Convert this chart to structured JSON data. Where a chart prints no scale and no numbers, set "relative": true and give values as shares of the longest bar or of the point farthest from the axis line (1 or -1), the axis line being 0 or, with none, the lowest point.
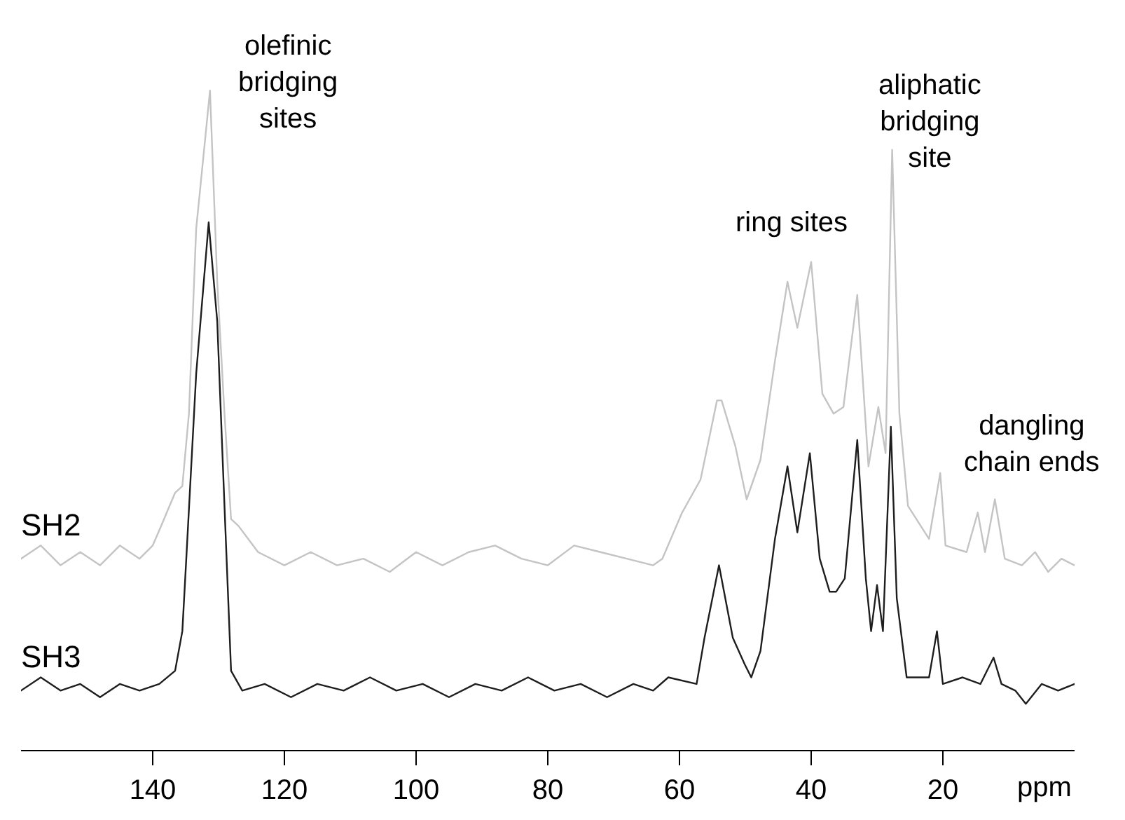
{
  "chart_data": {
    "type": "line",
    "relative": true,
    "xlabel": "ppm",
    "xlim": [
      160,
      0
    ],
    "xticks": [
      140,
      120,
      100,
      80,
      60,
      40,
      20
    ],
    "legend": false,
    "marker": "none",
    "line_style": "solid",
    "series": [
      {
        "name": "SH2",
        "color": "#c4c4c4",
        "x": [
          160,
          157,
          154,
          151,
          148,
          145,
          142,
          140,
          138.7,
          136.6,
          135.5,
          134.5,
          133.4,
          131.3,
          130.2,
          129.1,
          128.1,
          127.0,
          124,
          120,
          116,
          112,
          108,
          104,
          100,
          96,
          92,
          88,
          84,
          80,
          76,
          72,
          68,
          64,
          62.6,
          59.6,
          56.8,
          54.3,
          53.6,
          51.5,
          49.8,
          47.7,
          45.5,
          43.6,
          42.1,
          40.0,
          38.3,
          36.6,
          35.1,
          33.0,
          31.3,
          29.8,
          28.7,
          27.7,
          26.6,
          25.3,
          22.1,
          20.4,
          19.6,
          16.4,
          14.7,
          13.6,
          12.1,
          10.6,
          8,
          6,
          4,
          2,
          0
        ],
        "values": [
          0.29,
          0.31,
          0.28,
          0.3,
          0.28,
          0.31,
          0.29,
          0.31,
          0.34,
          0.39,
          0.4,
          0.51,
          0.79,
          1.0,
          0.71,
          0.51,
          0.35,
          0.34,
          0.3,
          0.28,
          0.3,
          0.28,
          0.29,
          0.27,
          0.3,
          0.28,
          0.3,
          0.31,
          0.29,
          0.28,
          0.31,
          0.3,
          0.29,
          0.28,
          0.29,
          0.36,
          0.41,
          0.53,
          0.53,
          0.46,
          0.38,
          0.44,
          0.59,
          0.71,
          0.64,
          0.74,
          0.54,
          0.51,
          0.52,
          0.69,
          0.43,
          0.52,
          0.45,
          0.91,
          0.51,
          0.37,
          0.32,
          0.42,
          0.31,
          0.3,
          0.36,
          0.3,
          0.38,
          0.29,
          0.28,
          0.3,
          0.27,
          0.29,
          0.28
        ]
      },
      {
        "name": "SH3",
        "color": "#1e1e1e",
        "x": [
          160,
          157,
          154,
          151,
          148,
          145,
          142,
          139,
          136.6,
          135.5,
          134.9,
          133.4,
          131.5,
          130.2,
          129.1,
          128.1,
          126.4,
          123,
          119,
          115,
          111,
          107,
          103,
          99,
          95,
          91,
          87,
          83,
          79,
          75,
          71,
          67,
          64,
          61.7,
          57.4,
          56.2,
          54.0,
          51.9,
          50.1,
          49.1,
          47.7,
          45.5,
          43.6,
          42.1,
          40.2,
          38.7,
          37.2,
          36.2,
          34.9,
          33.0,
          31.7,
          30.9,
          30.0,
          29.1,
          27.9,
          27.0,
          25.5,
          22.1,
          20.9,
          20.0,
          17,
          14.3,
          12.3,
          11.1,
          9,
          7.4,
          5,
          2.5,
          0
        ],
        "values": [
          0.09,
          0.11,
          0.09,
          0.1,
          0.08,
          0.1,
          0.09,
          0.1,
          0.12,
          0.18,
          0.29,
          0.57,
          0.8,
          0.65,
          0.37,
          0.12,
          0.09,
          0.1,
          0.08,
          0.1,
          0.09,
          0.11,
          0.09,
          0.1,
          0.08,
          0.1,
          0.09,
          0.11,
          0.09,
          0.1,
          0.08,
          0.1,
          0.09,
          0.11,
          0.1,
          0.17,
          0.28,
          0.17,
          0.13,
          0.11,
          0.15,
          0.32,
          0.43,
          0.33,
          0.45,
          0.29,
          0.24,
          0.24,
          0.26,
          0.47,
          0.26,
          0.18,
          0.25,
          0.18,
          0.49,
          0.23,
          0.11,
          0.11,
          0.18,
          0.1,
          0.11,
          0.1,
          0.14,
          0.1,
          0.09,
          0.07,
          0.1,
          0.09,
          0.1
        ]
      }
    ],
    "annotations": [
      "olefinic\nbridging\nsites",
      "ring sites",
      "aliphatic\nbridging\nsite",
      "dangling\nchain ends"
    ]
  }
}
